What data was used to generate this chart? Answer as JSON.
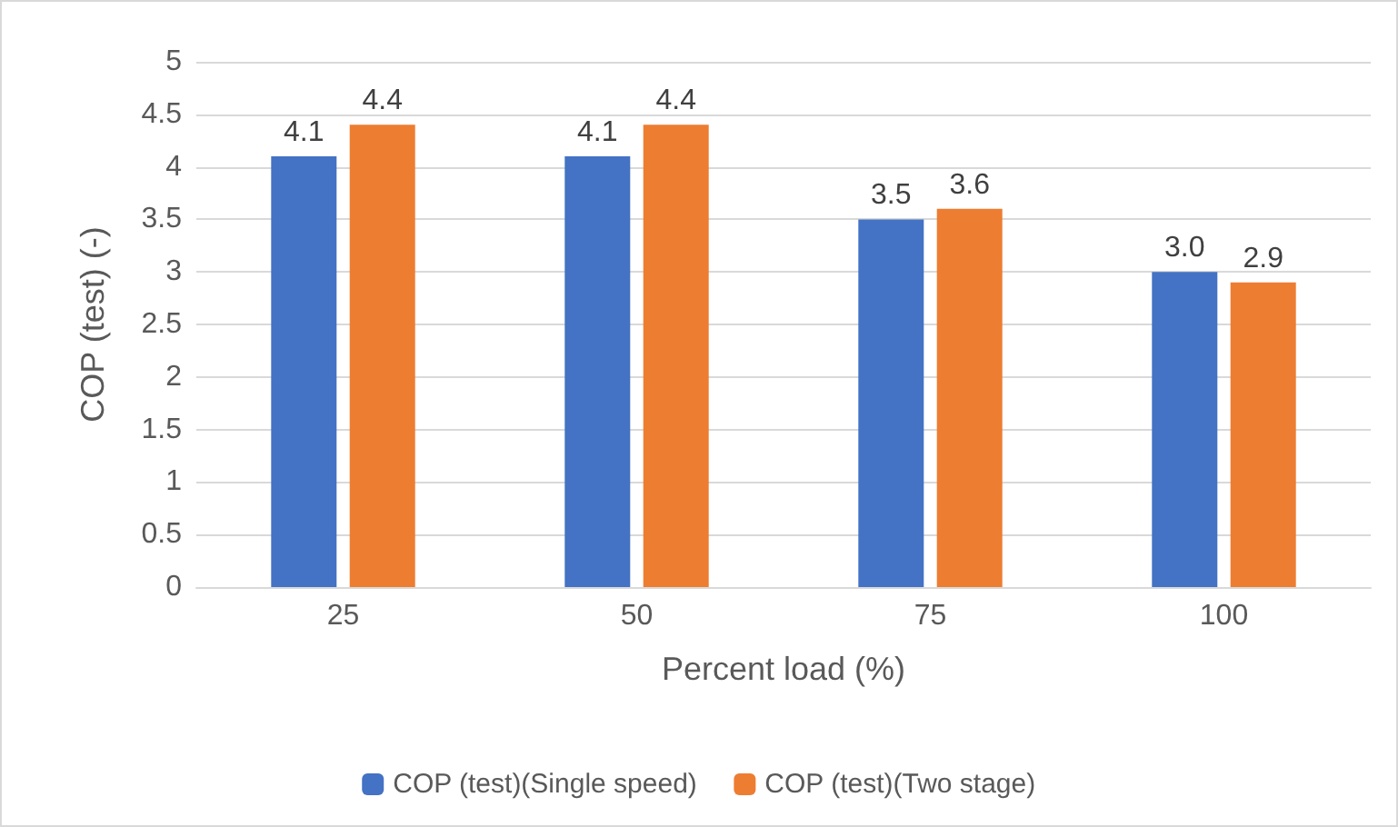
{
  "chart_data": {
    "type": "bar",
    "xlabel": "Percent load (%)",
    "ylabel": "COP (test) (-)",
    "categories": [
      "25",
      "50",
      "75",
      "100"
    ],
    "series": [
      {
        "name": "COP (test)(Single speed)",
        "color": "#4472c4",
        "values": [
          4.1,
          4.1,
          3.5,
          3.0
        ],
        "value_labels": [
          "4.1",
          "4.1",
          "3.5",
          "3.0"
        ]
      },
      {
        "name": "COP (test)(Two stage)",
        "color": "#ed7d31",
        "values": [
          4.4,
          4.4,
          3.6,
          2.9
        ],
        "value_labels": [
          "4.4",
          "4.4",
          "3.6",
          "2.9"
        ]
      }
    ],
    "ylim": [
      0,
      5
    ],
    "yticks": [
      0,
      0.5,
      1,
      1.5,
      2,
      2.5,
      3,
      3.5,
      4,
      4.5,
      5
    ],
    "grid": "y",
    "legend": "bottom"
  }
}
